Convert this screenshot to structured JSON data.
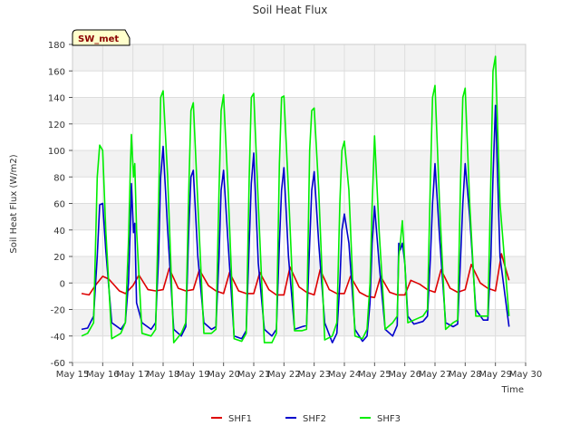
{
  "chart_data": {
    "type": "line",
    "title": "Soil Heat Flux",
    "xlabel": "Time",
    "ylabel": "Soil Heat Flux (W/m2)",
    "badge": "SW_met",
    "ylim": [
      -60,
      180
    ],
    "y_ticks": [
      -60,
      -40,
      -20,
      0,
      20,
      40,
      60,
      80,
      100,
      120,
      140,
      160,
      180
    ],
    "x_range": [
      15,
      30
    ],
    "x_ticks": [
      {
        "value": 15,
        "label": "May 15"
      },
      {
        "value": 16,
        "label": "May 16"
      },
      {
        "value": 17,
        "label": "May 17"
      },
      {
        "value": 18,
        "label": "May 18"
      },
      {
        "value": 19,
        "label": "May 19"
      },
      {
        "value": 20,
        "label": "May 20"
      },
      {
        "value": 21,
        "label": "May 21"
      },
      {
        "value": 22,
        "label": "May 22"
      },
      {
        "value": 23,
        "label": "May 23"
      },
      {
        "value": 24,
        "label": "May 24"
      },
      {
        "value": 25,
        "label": "May 25"
      },
      {
        "value": 26,
        "label": "May 26"
      },
      {
        "value": 27,
        "label": "May 27"
      },
      {
        "value": 28,
        "label": "May 28"
      },
      {
        "value": 29,
        "label": "May 29"
      },
      {
        "value": 30,
        "label": "May 30"
      }
    ],
    "series": [
      {
        "name": "SHF1",
        "color": "#dd0000",
        "x": [
          15.3,
          15.55,
          15.75,
          16.0,
          16.2,
          16.55,
          16.75,
          17.0,
          17.2,
          17.5,
          17.75,
          18.0,
          18.2,
          18.5,
          18.75,
          19.0,
          19.2,
          19.5,
          19.75,
          20.0,
          20.2,
          20.5,
          20.75,
          21.0,
          21.2,
          21.5,
          21.75,
          22.0,
          22.2,
          22.5,
          22.75,
          23.0,
          23.2,
          23.5,
          23.75,
          24.0,
          24.2,
          24.5,
          24.75,
          25.0,
          25.2,
          25.5,
          25.75,
          26.0,
          26.2,
          26.5,
          26.75,
          27.0,
          27.2,
          27.5,
          27.75,
          28.0,
          28.2,
          28.5,
          28.75,
          29.0,
          29.2,
          29.45
        ],
        "y": [
          -8,
          -9,
          -2,
          5,
          3,
          -6,
          -8,
          -2,
          6,
          -5,
          -6,
          -5,
          11,
          -4,
          -6,
          -5,
          10,
          -2,
          -6,
          -8,
          8,
          -6,
          -8,
          -8,
          8,
          -5,
          -9,
          -9,
          12,
          -3,
          -7,
          -9,
          10,
          -5,
          -8,
          -8,
          5,
          -7,
          -10,
          -11,
          5,
          -7,
          -9,
          -9,
          2,
          -1,
          -5,
          -7,
          10,
          -4,
          -7,
          -5,
          14,
          0,
          -4,
          -6,
          22,
          2
        ]
      },
      {
        "name": "SHF2",
        "color": "#0000cc",
        "x": [
          15.3,
          15.5,
          15.7,
          15.82,
          15.9,
          16.0,
          16.1,
          16.3,
          16.6,
          16.75,
          16.85,
          16.92,
          16.95,
          17.02,
          17.06,
          17.12,
          17.3,
          17.6,
          17.75,
          17.85,
          17.92,
          18.0,
          18.15,
          18.35,
          18.6,
          18.75,
          18.85,
          18.92,
          19.0,
          19.15,
          19.35,
          19.6,
          19.75,
          19.85,
          19.92,
          20.0,
          20.15,
          20.35,
          20.6,
          20.75,
          20.85,
          20.92,
          21.0,
          21.15,
          21.35,
          21.6,
          21.75,
          21.85,
          21.92,
          22.0,
          22.15,
          22.35,
          22.6,
          22.75,
          22.85,
          22.92,
          23.0,
          23.15,
          23.35,
          23.6,
          23.75,
          23.85,
          23.92,
          24.0,
          24.15,
          24.35,
          24.6,
          24.75,
          24.85,
          24.92,
          25.0,
          25.15,
          25.35,
          25.6,
          25.75,
          25.8,
          25.85,
          25.92,
          26.0,
          26.1,
          26.3,
          26.6,
          26.75,
          26.85,
          26.92,
          27.0,
          27.15,
          27.35,
          27.6,
          27.75,
          27.85,
          27.92,
          28.0,
          28.15,
          28.35,
          28.6,
          28.75,
          28.85,
          28.92,
          29.0,
          29.15,
          29.45
        ],
        "y": [
          -35,
          -34,
          -25,
          20,
          59,
          60,
          25,
          -30,
          -35,
          -30,
          0,
          45,
          75,
          38,
          45,
          -15,
          -30,
          -35,
          -30,
          20,
          80,
          103,
          40,
          -35,
          -40,
          -33,
          40,
          80,
          85,
          20,
          -30,
          -35,
          -33,
          20,
          70,
          85,
          30,
          -40,
          -42,
          -36,
          30,
          75,
          98,
          15,
          -35,
          -40,
          -35,
          30,
          70,
          87,
          20,
          -35,
          -33,
          -32,
          30,
          70,
          84,
          30,
          -30,
          -45,
          -38,
          0,
          40,
          52,
          30,
          -35,
          -44,
          -40,
          -15,
          30,
          58,
          15,
          -35,
          -40,
          -32,
          30,
          25,
          30,
          15,
          -25,
          -31,
          -29,
          -25,
          20,
          60,
          90,
          35,
          -30,
          -33,
          -31,
          20,
          60,
          90,
          50,
          -20,
          -28,
          -28,
          20,
          80,
          134,
          20,
          -33
        ]
      },
      {
        "name": "SHF3",
        "color": "#00ee00",
        "x": [
          15.3,
          15.5,
          15.7,
          15.82,
          15.9,
          16.0,
          16.1,
          16.3,
          16.6,
          16.75,
          16.85,
          16.92,
          16.95,
          17.02,
          17.06,
          17.12,
          17.3,
          17.6,
          17.75,
          17.85,
          17.92,
          18.0,
          18.15,
          18.35,
          18.6,
          18.75,
          18.85,
          18.92,
          19.0,
          19.15,
          19.35,
          19.6,
          19.75,
          19.85,
          19.92,
          20.0,
          20.15,
          20.35,
          20.6,
          20.75,
          20.85,
          20.92,
          21.0,
          21.15,
          21.35,
          21.6,
          21.75,
          21.85,
          21.92,
          22.0,
          22.15,
          22.35,
          22.6,
          22.75,
          22.85,
          22.92,
          23.0,
          23.15,
          23.35,
          23.6,
          23.75,
          23.85,
          23.92,
          24.0,
          24.15,
          24.35,
          24.6,
          24.75,
          24.85,
          24.92,
          25.0,
          25.15,
          25.35,
          25.6,
          25.75,
          25.8,
          25.85,
          25.92,
          26.0,
          26.1,
          26.3,
          26.6,
          26.75,
          26.85,
          26.92,
          27.0,
          27.15,
          27.35,
          27.6,
          27.75,
          27.85,
          27.92,
          28.0,
          28.15,
          28.35,
          28.6,
          28.75,
          28.85,
          28.92,
          29.0,
          29.15,
          29.45
        ],
        "y": [
          -40,
          -38,
          -30,
          80,
          104,
          100,
          40,
          -42,
          -38,
          -30,
          30,
          90,
          112,
          80,
          90,
          40,
          -38,
          -40,
          -35,
          60,
          140,
          145,
          80,
          -45,
          -38,
          -30,
          70,
          130,
          136,
          60,
          -38,
          -38,
          -35,
          70,
          130,
          142,
          70,
          -42,
          -44,
          -38,
          80,
          140,
          143,
          60,
          -45,
          -45,
          -38,
          90,
          140,
          141,
          70,
          -36,
          -36,
          -35,
          100,
          130,
          132,
          70,
          -43,
          -40,
          -30,
          60,
          100,
          107,
          70,
          -40,
          -42,
          -35,
          0,
          60,
          111,
          40,
          -35,
          -30,
          -25,
          20,
          30,
          47,
          15,
          -30,
          -28,
          -25,
          -20,
          80,
          140,
          149,
          60,
          -35,
          -30,
          -28,
          80,
          140,
          147,
          60,
          -25,
          -25,
          -25,
          80,
          160,
          171,
          60,
          -25
        ]
      }
    ],
    "legend": [
      {
        "name": "SHF1",
        "color": "#dd0000"
      },
      {
        "name": "SHF2",
        "color": "#0000cc"
      },
      {
        "name": "SHF3",
        "color": "#00ee00"
      }
    ],
    "grid": true,
    "legend_position": "bottom-center"
  }
}
